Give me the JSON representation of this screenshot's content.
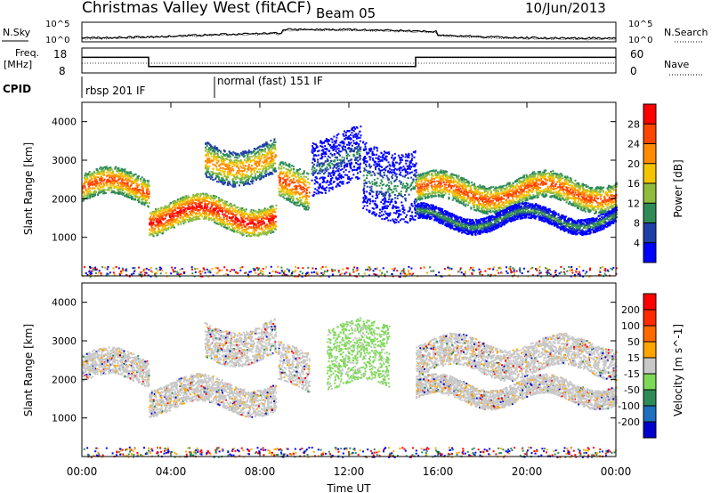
{
  "header": {
    "station": "Christmas Valley West (fitACF)",
    "beam": "Beam 05",
    "date": "10/Jun/2013"
  },
  "noise_panel": {
    "left_label": "N.Sky",
    "right_label": "N.Search",
    "left_ticks": [
      "10^5",
      "10^0"
    ],
    "right_ticks": [
      "10^5",
      "10^0"
    ]
  },
  "freq_panel": {
    "left_label_1": "Freq.",
    "left_label_2": "[MHz]",
    "right_label": "Nave",
    "left_ticks": [
      "18",
      "8"
    ],
    "right_ticks": [
      "60",
      "0"
    ],
    "freq_segments": [
      {
        "start": 0.0,
        "end": 3.0,
        "value": 14.3
      },
      {
        "start": 3.0,
        "end": 8.75,
        "value": 10.6
      },
      {
        "start": 8.75,
        "end": 15.0,
        "value": 10.6
      },
      {
        "start": 15.0,
        "end": 24.0,
        "value": 14.3
      }
    ]
  },
  "cpid": {
    "label": "CPID",
    "modes": [
      {
        "start": 0.0,
        "end": 6.0,
        "name": "rbsp 201 IF"
      },
      {
        "start": 6.0,
        "end": 24.0,
        "name": "normal (fast) 151 IF"
      }
    ]
  },
  "chart_data": [
    {
      "type": "heatmap",
      "panel": "power",
      "ylabel": "Slant Range [km]",
      "ylim": [
        0,
        4500
      ],
      "yticks": [
        "4000",
        "3000",
        "2000",
        "1000"
      ],
      "colorbar_label": "Power [dB]",
      "colorbar_ticks": [
        "28",
        "24",
        "20",
        "16",
        "12",
        "8",
        "4"
      ],
      "colors": [
        "#0000ff",
        "#1f3fa8",
        "#2e8b57",
        "#8fbc3c",
        "#f5c400",
        "#ff8c00",
        "#ff4500",
        "#ff0000"
      ],
      "bands": [
        {
          "start": 0.0,
          "end": 3.0,
          "center": 2300,
          "width": 700,
          "level": 0.85
        },
        {
          "start": 3.0,
          "end": 8.7,
          "center": 1600,
          "width": 700,
          "level": 0.95
        },
        {
          "start": 5.5,
          "end": 8.7,
          "center": 3000,
          "width": 900,
          "level": 0.75
        },
        {
          "start": 8.8,
          "end": 10.2,
          "center": 2300,
          "width": 1000,
          "level": 0.85
        },
        {
          "start": 10.3,
          "end": 12.5,
          "center": 3000,
          "width": 1400,
          "level": 0.3
        },
        {
          "start": 12.6,
          "end": 15.0,
          "center": 2500,
          "width": 1800,
          "level": 0.35
        },
        {
          "start": 15.0,
          "end": 24.0,
          "center": 2200,
          "width": 700,
          "level": 0.85
        },
        {
          "start": 15.0,
          "end": 24.0,
          "center": 1500,
          "width": 400,
          "level": 0.4
        }
      ]
    },
    {
      "type": "heatmap",
      "panel": "velocity",
      "ylabel": "Slant Range [km]",
      "xlabel": "Time UT",
      "ylim": [
        0,
        4500
      ],
      "yticks": [
        "4000",
        "3000",
        "2000",
        "1000"
      ],
      "xticks": [
        "00:00",
        "04:00",
        "08:00",
        "12:00",
        "16:00",
        "20:00",
        "00:00"
      ],
      "xlim": [
        0,
        24
      ],
      "colorbar_label": "Velocity [m s^-1]",
      "colorbar_ticks": [
        "200",
        "100",
        "50",
        "15",
        "-15",
        "-50",
        "-100",
        "-200"
      ],
      "colors": [
        "#0000cd",
        "#1e6fbf",
        "#2e8b57",
        "#7ed957",
        "#c8c8c8",
        "#ffa500",
        "#ff6a00",
        "#ff2a00",
        "#ff0000"
      ],
      "bands": [
        {
          "start": 0.0,
          "end": 3.0,
          "center": 2300,
          "width": 700,
          "color": "gray"
        },
        {
          "start": 3.0,
          "end": 8.7,
          "center": 1600,
          "width": 700,
          "color": "gray"
        },
        {
          "start": 5.5,
          "end": 8.7,
          "center": 3000,
          "width": 900,
          "color": "gray"
        },
        {
          "start": 8.8,
          "end": 10.2,
          "center": 2300,
          "width": 1000,
          "color": "gray"
        },
        {
          "start": 11.0,
          "end": 13.8,
          "center": 2600,
          "width": 1600,
          "color": "green"
        },
        {
          "start": 15.0,
          "end": 24.0,
          "center": 2600,
          "width": 800,
          "color": "gray"
        },
        {
          "start": 15.0,
          "end": 24.0,
          "center": 1700,
          "width": 500,
          "color": "gray"
        }
      ]
    }
  ]
}
